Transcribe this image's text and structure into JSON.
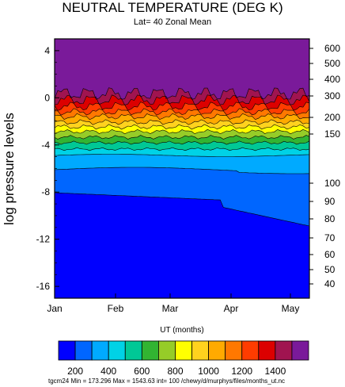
{
  "chart_data": {
    "type": "heatmap",
    "title": "NEUTRAL TEMPERATURE (DEG K)",
    "subtitle": "Lat= 40 Zonal Mean",
    "xlabel": "UT (months)",
    "ylabel": "log pressure levels",
    "x_ticks": [
      "Jan",
      "Feb",
      "Mar",
      "Apr",
      "May"
    ],
    "y_ticks": [
      4,
      0,
      -4,
      -8,
      -12,
      -16
    ],
    "ylim": [
      -17,
      5
    ],
    "right_axis_ticks": [
      600,
      500,
      400,
      300,
      200,
      150,
      100,
      90,
      80,
      70,
      60,
      50,
      40
    ],
    "contour_levels": [
      100,
      200,
      300,
      400,
      500,
      600,
      700,
      800,
      900,
      1000,
      1100,
      1200,
      1300,
      1400,
      1500
    ],
    "colorbar_labels": [
      "200",
      "400",
      "600",
      "800",
      "1000",
      "1200",
      "1400"
    ],
    "colors": [
      "#0000ff",
      "#0066ff",
      "#00aaff",
      "#00d2e6",
      "#00c896",
      "#32b432",
      "#96cc28",
      "#ffff00",
      "#ffd21e",
      "#ffaa00",
      "#ff7800",
      "#ff3c00",
      "#dc0000",
      "#a01450",
      "#7a1a9a"
    ],
    "footer": "tgcm24 Min = 173.296  Max  = 1543.63 int= 100 /chewy/d/murphys/files/months_ut.nc"
  }
}
